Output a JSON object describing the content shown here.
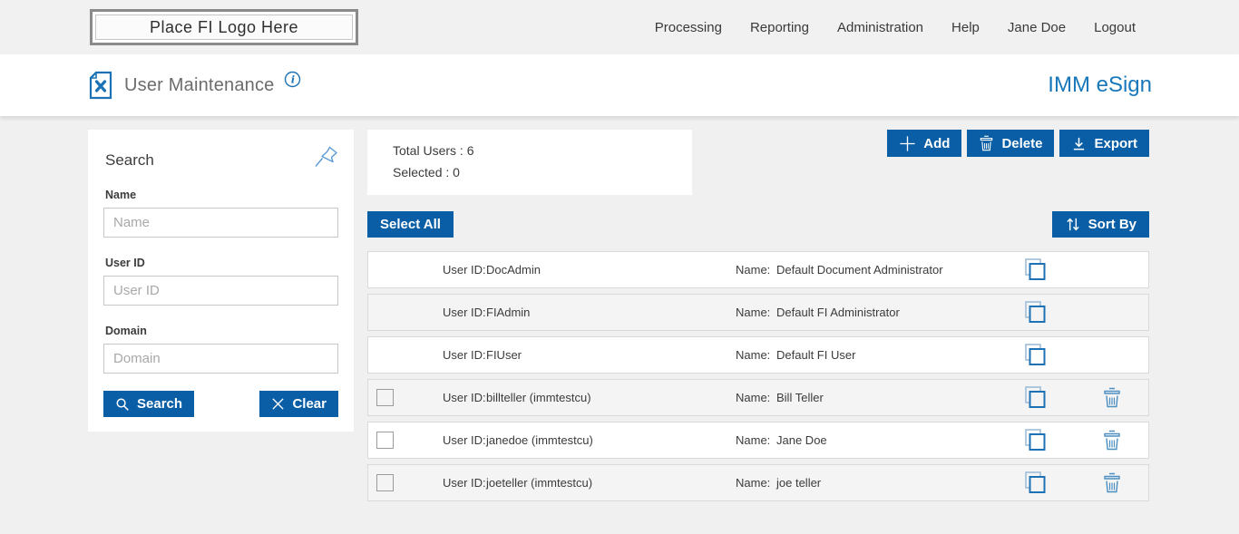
{
  "topbar": {
    "logo_text": "Place FI Logo Here",
    "nav": [
      "Processing",
      "Reporting",
      "Administration",
      "Help",
      "Jane Doe",
      "Logout"
    ]
  },
  "header": {
    "title": "User Maintenance",
    "brand": "IMM eSign"
  },
  "search_panel": {
    "title": "Search",
    "fields": [
      {
        "label": "Name",
        "placeholder": "Name",
        "value": ""
      },
      {
        "label": "User ID",
        "placeholder": "User ID",
        "value": ""
      },
      {
        "label": "Domain",
        "placeholder": "Domain",
        "value": ""
      }
    ],
    "search_button": "Search",
    "clear_button": "Clear"
  },
  "summary": {
    "total_users": "Total Users : 6",
    "selected": "Selected : 0"
  },
  "toolbar": {
    "add": "Add",
    "delete": "Delete",
    "export": "Export",
    "select_all": "Select All",
    "sort_by": "Sort By"
  },
  "row_labels": {
    "user_id": "User ID:",
    "name": "Name:"
  },
  "users": [
    {
      "user_id": "DocAdmin",
      "name": "Default Document Administrator",
      "selectable": false,
      "deletable": false
    },
    {
      "user_id": "FIAdmin",
      "name": "Default FI Administrator",
      "selectable": false,
      "deletable": false
    },
    {
      "user_id": "FIUser",
      "name": "Default FI User",
      "selectable": false,
      "deletable": false
    },
    {
      "user_id": "billteller (immtestcu)",
      "name": "Bill Teller",
      "selectable": true,
      "deletable": true
    },
    {
      "user_id": "janedoe (immtestcu)",
      "name": "Jane Doe",
      "selectable": true,
      "deletable": true
    },
    {
      "user_id": "joeteller (immtestcu)",
      "name": "joe teller",
      "selectable": true,
      "deletable": true
    }
  ],
  "icons": {
    "copy": "copy-icon",
    "trash": "trash-icon",
    "pin": "pin-icon",
    "info": "info-icon",
    "search": "search-icon",
    "clear": "x-icon",
    "add": "plus-icon",
    "export": "download-icon",
    "sort": "sort-arrows-icon",
    "page_tools": "document-maintenance-icon"
  },
  "colors": {
    "accent_blue": "#0a5ea6",
    "brand_blue": "#1878ba",
    "icon_blue": "#1c72b4",
    "icon_light_blue": "#5b9bd5",
    "row_alt_bg": "#f4f4f4",
    "page_bg": "#f0f0f0"
  }
}
